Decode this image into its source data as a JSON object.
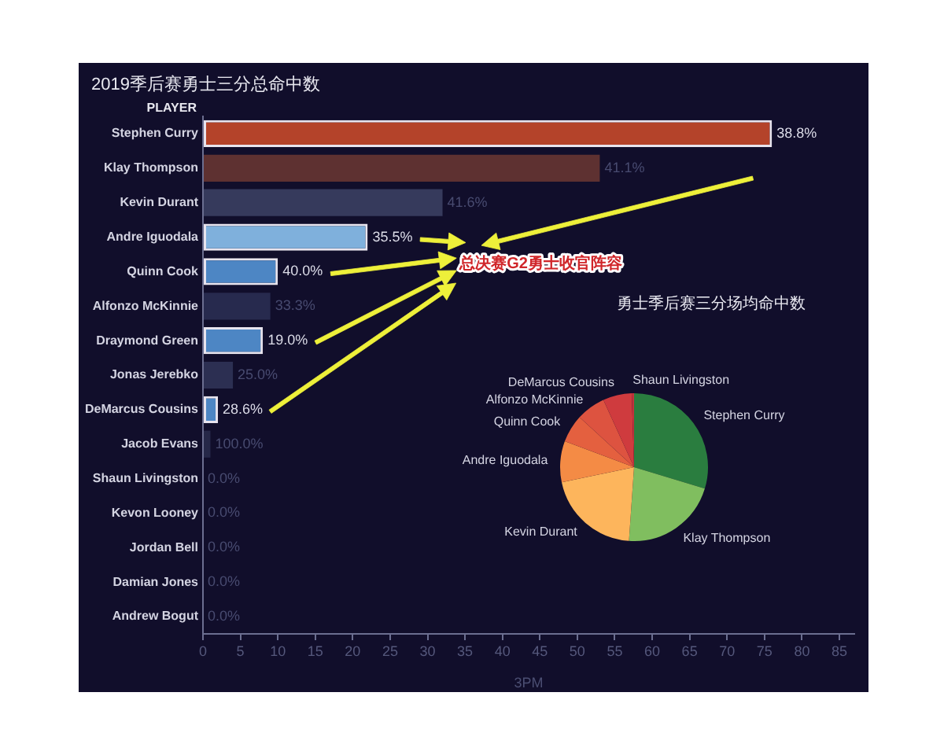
{
  "chart_data": [
    {
      "type": "bar",
      "orientation": "horizontal",
      "title": "2019季后赛勇士三分总命中数",
      "ylabel": "PLAYER",
      "xlabel": "3PM",
      "categories": [
        "Stephen Curry",
        "Klay Thompson",
        "Kevin Durant",
        "Andre Iguodala",
        "Quinn Cook",
        "Alfonzo McKinnie",
        "Draymond Green",
        "Jonas Jerebko",
        "DeMarcus Cousins",
        "Jacob Evans",
        "Shaun Livingston",
        "Kevon Looney",
        "Jordan Bell",
        "Damian Jones",
        "Andrew Bogut"
      ],
      "values": [
        76,
        53,
        32,
        22,
        10,
        9,
        8,
        4,
        2,
        1,
        0,
        0,
        0,
        0,
        0
      ],
      "colors": [
        "#b4432a",
        "#5e3131",
        "#363a5c",
        "#7fb0dc",
        "#4d86c4",
        "#272a4e",
        "#4d86c4",
        "#2c2f52",
        "#4d86c4",
        "#262848",
        "#262848",
        "#262848",
        "#262848",
        "#262848",
        "#262848"
      ],
      "xlim": [
        0,
        87
      ],
      "xticks": [
        0,
        5,
        10,
        15,
        20,
        25,
        30,
        35,
        40,
        45,
        50,
        55,
        60,
        65,
        70,
        75,
        80,
        85
      ],
      "annotations": [
        "总决赛G2勇士收官阵容",
        {
          "text": "38.8%",
          "x": 76,
          "y": "Stephen Curry"
        },
        {
          "text": "41.1%",
          "x": 53,
          "y": "Klay Thompson"
        },
        {
          "text": "41.6%",
          "x": 32,
          "y": "Kevin Durant"
        },
        {
          "text": "35.5%",
          "x": 22,
          "y": "Andre Iguodala"
        },
        {
          "text": "40.0%",
          "x": 10,
          "y": "Quinn Cook"
        },
        {
          "text": "33.3%",
          "x": 9,
          "y": "Alfonzo McKinnie"
        },
        {
          "text": "19.0%",
          "x": 8,
          "y": "Draymond Green"
        },
        {
          "text": "25.0%",
          "x": 4,
          "y": "Jonas Jerebko"
        },
        {
          "text": "28.6%",
          "x": 2,
          "y": "DeMarcus Cousins"
        },
        {
          "text": "100.0%",
          "x": 1,
          "y": "Jacob Evans"
        },
        {
          "text": "0.0%",
          "x": 0,
          "y": "Shaun Livingston"
        },
        {
          "text": "0.0%",
          "x": 0,
          "y": "Kevon Looney"
        },
        {
          "text": "0.0%",
          "x": 0,
          "y": "Jordan Bell"
        },
        {
          "text": "0.0%",
          "x": 0,
          "y": "Damian Jones"
        },
        {
          "text": "0.0%",
          "x": 0,
          "y": "Andrew Bogut"
        }
      ]
    },
    {
      "type": "pie",
      "title": "勇士季后赛三分场均命中数",
      "categories": [
        "Stephen Curry",
        "Klay Thompson",
        "Kevin Durant",
        "Andre Iguodala",
        "Quinn Cook",
        "Alfonzo McKinnie",
        "DeMarcus Cousins",
        "Shaun Livingston"
      ],
      "values": [
        29.7,
        21.4,
        20.6,
        9.0,
        6.1,
        6.4,
        6.3,
        0.5
      ],
      "colors": [
        "#2a7d3f",
        "#80be5f",
        "#fdb55c",
        "#f48b45",
        "#e4603f",
        "#dd5340",
        "#cf3b3e",
        "#c3323b"
      ]
    }
  ]
}
